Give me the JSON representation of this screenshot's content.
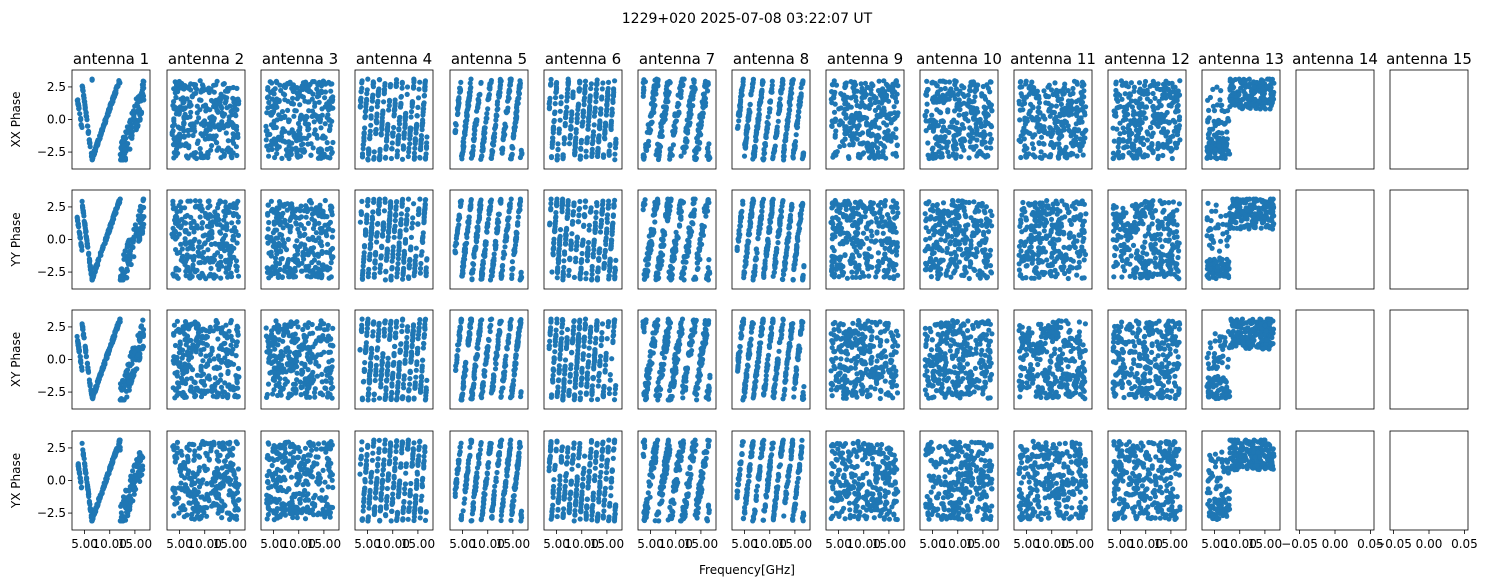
{
  "figure": {
    "title": "1229+020 2025-07-08 03:22:07 UT",
    "xlabel": "Frequency[GHz]",
    "colors": {
      "points": "#1f77b4",
      "frame": "#000000",
      "background": "#ffffff"
    }
  },
  "chart_data": {
    "type": "scatter",
    "layout": "grid of 4 rows x 15 columns",
    "panel_titles": [
      "antenna 1",
      "antenna 2",
      "antenna 3",
      "antenna 4",
      "antenna 5",
      "antenna 6",
      "antenna 7",
      "antenna 8",
      "antenna 9",
      "antenna 10",
      "antenna 11",
      "antenna 12",
      "antenna 13",
      "antenna 14",
      "antenna 15"
    ],
    "row_labels": [
      "XX Phase",
      "YY Phase",
      "XY Phase",
      "YX Phase"
    ],
    "ylim": [
      -3.8,
      3.8
    ],
    "yticks": [
      -2.5,
      0.0,
      2.5
    ],
    "ytick_labels": [
      "−2.5",
      "0.0",
      "2.5"
    ],
    "xlim_data_antennas": [
      2.5,
      18.0
    ],
    "xticks_data_antennas": [
      5.0,
      10.0,
      15.0
    ],
    "xtick_labels_data_antennas": [
      "5.00",
      "10.00",
      "15.00"
    ],
    "xlim_empty_antennas": [
      -0.055,
      0.055
    ],
    "xticks_empty_antennas": [
      -0.05,
      0.0,
      0.05
    ],
    "xtick_labels_empty_antennas": [
      "−0.05",
      "0.00",
      "0.05"
    ],
    "antennas_with_data": 13,
    "antennas_empty": [
      "antenna 14",
      "antenna 15"
    ],
    "phase_patterns": [
      {
        "antenna": "antenna 1",
        "pattern": "steep V-shaped phase wrap: high near 5 GHz, minimum near 6-7 GHz, rising to +3 by 12 GHz"
      },
      {
        "antenna": "antenna 2",
        "pattern": "random scatter across -3..3"
      },
      {
        "antenna": "antenna 3",
        "pattern": "random scatter across -3..3"
      },
      {
        "antenna": "antenna 4",
        "pattern": "dense vertical phase-wrap streaks"
      },
      {
        "antenna": "antenna 5",
        "pattern": "diagonal phase-wrap streaks"
      },
      {
        "antenna": "antenna 6",
        "pattern": "dense vertical phase-wrap streaks"
      },
      {
        "antenna": "antenna 7",
        "pattern": "weak streaks / mostly random"
      },
      {
        "antenna": "antenna 8",
        "pattern": "diagonal phase-wrap streaks"
      },
      {
        "antenna": "antenna 9",
        "pattern": "random scatter across -3..3"
      },
      {
        "antenna": "antenna 10",
        "pattern": "random scatter across -3..3"
      },
      {
        "antenna": "antenna 11",
        "pattern": "random scatter across -3..3"
      },
      {
        "antenna": "antenna 12",
        "pattern": "random scatter across -3..3"
      },
      {
        "antenna": "antenna 13",
        "pattern": "low-frequency cluster near -2.5, upper band near +2.5"
      }
    ]
  }
}
